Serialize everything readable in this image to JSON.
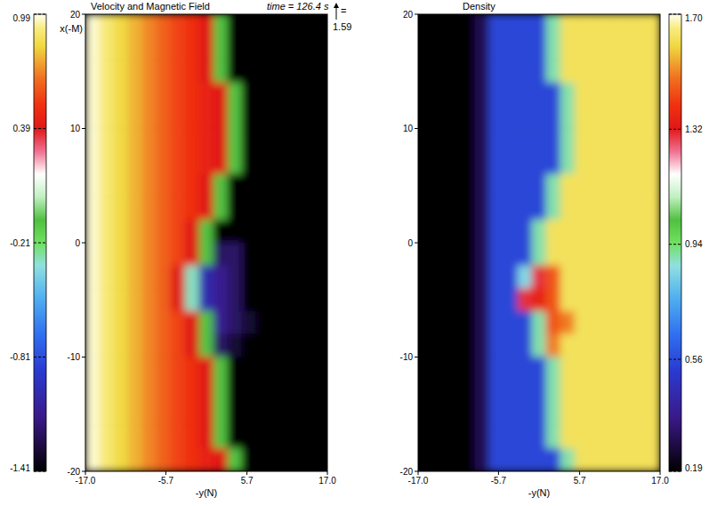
{
  "time": "time = 126.4 s",
  "scale_arrow": {
    "sign": "=",
    "value": 1.59
  },
  "chart_data": [
    {
      "type": "heatmap",
      "title": "Velocity and Magnetic Field",
      "x_label": "-y(N)",
      "y_label": "x(-M)",
      "x": [
        -16,
        -14,
        -12,
        -10,
        -8,
        -6,
        -4,
        -2,
        0,
        2,
        4,
        6,
        8,
        10,
        12,
        14,
        16
      ],
      "y": [
        19,
        17,
        15,
        13,
        11,
        9,
        7,
        5,
        3,
        1,
        -1,
        -3,
        -5,
        -7,
        -9,
        -11,
        -13,
        -15,
        -17,
        -19
      ],
      "xlim": [
        -17,
        17
      ],
      "ylim": [
        -20,
        20
      ],
      "xticks": [
        {
          "value": -17,
          "label": "-17.0"
        },
        -5.7,
        5.7,
        {
          "value": 17,
          "label": "17.0"
        }
      ],
      "yticks": [
        20,
        10,
        0,
        -10,
        -20
      ],
      "cells": [
        [
          0.97,
          0.9,
          0.83,
          0.76,
          0.69,
          0.62,
          0.55,
          0.5,
          0.39,
          -0.1,
          -1.41,
          -1.41,
          -1.41,
          -1.41,
          -1.41,
          -1.41,
          -1.41
        ],
        [
          0.97,
          0.9,
          0.83,
          0.76,
          0.69,
          0.62,
          0.55,
          0.5,
          0.39,
          -0.1,
          -1.41,
          -1.41,
          -1.41,
          -1.41,
          -1.41,
          -1.41,
          -1.41
        ],
        [
          0.97,
          0.9,
          0.83,
          0.76,
          0.69,
          0.62,
          0.55,
          0.5,
          0.39,
          -0.1,
          -1.41,
          -1.41,
          -1.41,
          -1.41,
          -1.41,
          -1.41,
          -1.41
        ],
        [
          0.97,
          0.9,
          0.83,
          0.76,
          0.69,
          0.62,
          0.55,
          0.5,
          0.45,
          0.39,
          -0.1,
          -1.41,
          -1.41,
          -1.41,
          -1.41,
          -1.41,
          -1.41
        ],
        [
          0.97,
          0.9,
          0.83,
          0.76,
          0.69,
          0.62,
          0.55,
          0.5,
          0.45,
          0.39,
          -0.1,
          -1.41,
          -1.41,
          -1.41,
          -1.41,
          -1.41,
          -1.41
        ],
        [
          0.97,
          0.9,
          0.83,
          0.76,
          0.69,
          0.62,
          0.55,
          0.5,
          0.45,
          0.39,
          -0.1,
          -1.41,
          -1.41,
          -1.41,
          -1.41,
          -1.41,
          -1.41
        ],
        [
          0.97,
          0.9,
          0.83,
          0.76,
          0.69,
          0.62,
          0.55,
          0.5,
          0.45,
          0.39,
          -0.1,
          -1.41,
          -1.41,
          -1.41,
          -1.41,
          -1.41,
          -1.41
        ],
        [
          0.97,
          0.9,
          0.83,
          0.76,
          0.69,
          0.62,
          0.55,
          0.5,
          0.39,
          -0.1,
          -1.41,
          -1.41,
          -1.41,
          -1.41,
          -1.41,
          -1.41,
          -1.41
        ],
        [
          0.97,
          0.9,
          0.83,
          0.76,
          0.69,
          0.62,
          0.55,
          0.5,
          0.39,
          -0.1,
          -1.41,
          -1.41,
          -1.41,
          -1.41,
          -1.41,
          -1.41,
          -1.41
        ],
        [
          0.97,
          0.9,
          0.83,
          0.76,
          0.69,
          0.62,
          0.55,
          0.39,
          -0.1,
          -1.41,
          -1.41,
          -1.41,
          -1.41,
          -1.41,
          -1.41,
          -1.41,
          -1.41
        ],
        [
          0.97,
          0.9,
          0.83,
          0.76,
          0.69,
          0.62,
          0.55,
          0.39,
          -0.1,
          -1.2,
          -1.2,
          -1.41,
          -1.41,
          -1.41,
          -1.41,
          -1.41,
          -1.41
        ],
        [
          0.97,
          0.9,
          0.83,
          0.76,
          0.69,
          0.62,
          0.39,
          -0.3,
          -1.0,
          -1.1,
          -1.2,
          -1.41,
          -1.41,
          -1.41,
          -1.41,
          -1.41,
          -1.41
        ],
        [
          0.97,
          0.9,
          0.83,
          0.76,
          0.69,
          0.62,
          0.39,
          -0.3,
          -1.0,
          -1.1,
          -1.2,
          -1.41,
          -1.41,
          -1.41,
          -1.41,
          -1.41,
          -1.41
        ],
        [
          0.97,
          0.9,
          0.83,
          0.76,
          0.69,
          0.62,
          0.55,
          0.39,
          -0.1,
          -1.1,
          -1.2,
          -1.3,
          -1.41,
          -1.41,
          -1.41,
          -1.41,
          -1.41
        ],
        [
          0.97,
          0.9,
          0.83,
          0.76,
          0.69,
          0.62,
          0.55,
          0.39,
          -0.1,
          -1.2,
          -1.3,
          -1.41,
          -1.41,
          -1.41,
          -1.41,
          -1.41,
          -1.41
        ],
        [
          0.97,
          0.9,
          0.83,
          0.76,
          0.69,
          0.62,
          0.55,
          0.5,
          0.39,
          -0.1,
          -1.41,
          -1.41,
          -1.41,
          -1.41,
          -1.41,
          -1.41,
          -1.41
        ],
        [
          0.97,
          0.9,
          0.83,
          0.76,
          0.69,
          0.62,
          0.55,
          0.5,
          0.39,
          -0.1,
          -1.41,
          -1.41,
          -1.41,
          -1.41,
          -1.41,
          -1.41,
          -1.41
        ],
        [
          0.97,
          0.9,
          0.83,
          0.76,
          0.69,
          0.62,
          0.55,
          0.5,
          0.39,
          -0.1,
          -1.41,
          -1.41,
          -1.41,
          -1.41,
          -1.41,
          -1.41,
          -1.41
        ],
        [
          0.97,
          0.9,
          0.83,
          0.76,
          0.69,
          0.62,
          0.55,
          0.5,
          0.39,
          -0.1,
          -1.41,
          -1.41,
          -1.41,
          -1.41,
          -1.41,
          -1.41,
          -1.41
        ],
        [
          0.97,
          0.9,
          0.83,
          0.76,
          0.69,
          0.62,
          0.55,
          0.5,
          0.45,
          0.39,
          -0.1,
          -1.41,
          -1.41,
          -1.41,
          -1.41,
          -1.41,
          -1.41
        ]
      ],
      "colorbar_range": [
        -1.41,
        0.99
      ],
      "colorbar_ticks": [
        0.99,
        0.39,
        -0.21,
        -0.81,
        -1.41
      ]
    },
    {
      "type": "heatmap",
      "title": "Density",
      "x_label": "-y(N)",
      "x": [
        -16,
        -14,
        -12,
        -10,
        -8,
        -6,
        -4,
        -2,
        0,
        2,
        4,
        6,
        8,
        10,
        12,
        14,
        16
      ],
      "y": [
        19,
        17,
        15,
        13,
        11,
        9,
        7,
        5,
        3,
        1,
        -1,
        -3,
        -5,
        -7,
        -9,
        -11,
        -13,
        -15,
        -17,
        -19
      ],
      "xlim": [
        -17,
        17
      ],
      "ylim": [
        -20,
        20
      ],
      "xticks": [
        {
          "value": -17,
          "label": "-17.0"
        },
        -5.7,
        5.7,
        {
          "value": 17,
          "label": "17.0"
        }
      ],
      "yticks": [
        20,
        10,
        0,
        -10,
        -20
      ],
      "cells": [
        [
          0.19,
          0.19,
          0.19,
          0.19,
          0.3,
          0.55,
          0.55,
          0.55,
          0.55,
          0.9,
          1.62,
          1.62,
          1.62,
          1.62,
          1.62,
          1.62,
          1.62
        ],
        [
          0.19,
          0.19,
          0.19,
          0.19,
          0.3,
          0.55,
          0.55,
          0.55,
          0.55,
          0.9,
          1.62,
          1.62,
          1.62,
          1.62,
          1.62,
          1.62,
          1.62
        ],
        [
          0.19,
          0.19,
          0.19,
          0.19,
          0.3,
          0.55,
          0.55,
          0.55,
          0.55,
          0.9,
          1.62,
          1.62,
          1.62,
          1.62,
          1.62,
          1.62,
          1.62
        ],
        [
          0.19,
          0.19,
          0.19,
          0.19,
          0.3,
          0.55,
          0.55,
          0.55,
          0.55,
          0.55,
          0.9,
          1.62,
          1.62,
          1.62,
          1.62,
          1.62,
          1.62
        ],
        [
          0.19,
          0.19,
          0.19,
          0.19,
          0.3,
          0.55,
          0.55,
          0.55,
          0.55,
          0.55,
          0.9,
          1.62,
          1.62,
          1.62,
          1.62,
          1.62,
          1.62
        ],
        [
          0.19,
          0.19,
          0.19,
          0.19,
          0.3,
          0.55,
          0.55,
          0.55,
          0.55,
          0.55,
          0.9,
          1.62,
          1.62,
          1.62,
          1.62,
          1.62,
          1.62
        ],
        [
          0.19,
          0.19,
          0.19,
          0.19,
          0.3,
          0.55,
          0.55,
          0.55,
          0.55,
          0.55,
          0.9,
          1.62,
          1.62,
          1.62,
          1.62,
          1.62,
          1.62
        ],
        [
          0.19,
          0.19,
          0.19,
          0.19,
          0.3,
          0.55,
          0.55,
          0.55,
          0.55,
          0.9,
          1.62,
          1.62,
          1.62,
          1.62,
          1.62,
          1.62,
          1.62
        ],
        [
          0.19,
          0.19,
          0.19,
          0.19,
          0.3,
          0.55,
          0.55,
          0.55,
          0.55,
          0.9,
          1.62,
          1.62,
          1.62,
          1.62,
          1.62,
          1.62,
          1.62
        ],
        [
          0.19,
          0.19,
          0.19,
          0.19,
          0.3,
          0.55,
          0.55,
          0.55,
          0.9,
          1.62,
          1.62,
          1.62,
          1.62,
          1.62,
          1.62,
          1.62,
          1.62
        ],
        [
          0.19,
          0.19,
          0.19,
          0.19,
          0.3,
          0.55,
          0.55,
          0.55,
          0.9,
          1.62,
          1.62,
          1.62,
          1.62,
          1.62,
          1.62,
          1.62,
          1.62
        ],
        [
          0.19,
          0.19,
          0.19,
          0.19,
          0.3,
          0.55,
          0.55,
          0.85,
          1.3,
          1.45,
          1.62,
          1.62,
          1.62,
          1.62,
          1.62,
          1.62,
          1.62
        ],
        [
          0.19,
          0.19,
          0.19,
          0.19,
          0.3,
          0.55,
          0.55,
          1.3,
          1.35,
          1.45,
          1.62,
          1.62,
          1.62,
          1.62,
          1.62,
          1.62,
          1.62
        ],
        [
          0.19,
          0.19,
          0.19,
          0.19,
          0.3,
          0.55,
          0.55,
          0.55,
          0.9,
          1.45,
          1.5,
          1.62,
          1.62,
          1.62,
          1.62,
          1.62,
          1.62
        ],
        [
          0.19,
          0.19,
          0.19,
          0.19,
          0.3,
          0.55,
          0.55,
          0.55,
          0.9,
          1.5,
          1.62,
          1.62,
          1.62,
          1.62,
          1.62,
          1.62,
          1.62
        ],
        [
          0.19,
          0.19,
          0.19,
          0.19,
          0.3,
          0.55,
          0.55,
          0.55,
          0.55,
          0.9,
          1.62,
          1.62,
          1.62,
          1.62,
          1.62,
          1.62,
          1.62
        ],
        [
          0.19,
          0.19,
          0.19,
          0.19,
          0.3,
          0.55,
          0.55,
          0.55,
          0.55,
          0.9,
          1.62,
          1.62,
          1.62,
          1.62,
          1.62,
          1.62,
          1.62
        ],
        [
          0.19,
          0.19,
          0.19,
          0.19,
          0.3,
          0.55,
          0.55,
          0.55,
          0.55,
          0.9,
          1.62,
          1.62,
          1.62,
          1.62,
          1.62,
          1.62,
          1.62
        ],
        [
          0.19,
          0.19,
          0.19,
          0.19,
          0.3,
          0.55,
          0.55,
          0.55,
          0.55,
          0.9,
          1.62,
          1.62,
          1.62,
          1.62,
          1.62,
          1.62,
          1.62
        ],
        [
          0.19,
          0.19,
          0.19,
          0.19,
          0.3,
          0.55,
          0.55,
          0.55,
          0.55,
          0.55,
          0.9,
          1.62,
          1.62,
          1.62,
          1.62,
          1.62,
          1.62
        ]
      ],
      "colorbar_range": [
        0.19,
        1.7
      ],
      "colorbar_ticks": [
        {
          "value": 1.7,
          "label": "1.70"
        },
        1.32,
        0.94,
        0.56,
        0.19
      ]
    }
  ]
}
